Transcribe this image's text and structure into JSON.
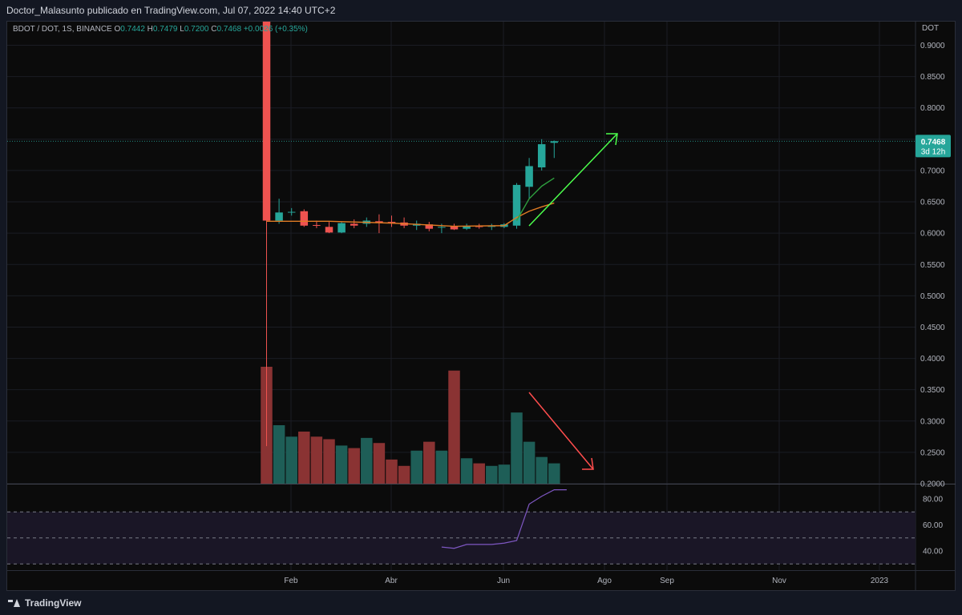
{
  "header": {
    "text": "Doctor_Malasunto publicado en TradingView.com, Jul 07, 2022 14:40 UTC+2"
  },
  "legend": {
    "symbol": "BDOT / DOT, 1S, BINANCE",
    "open_label": "O",
    "open": "0.7442",
    "high_label": "H",
    "high": "0.7479",
    "low_label": "L",
    "low": "0.7200",
    "close_label": "C",
    "close": "0.7468",
    "change": "+0.0026 (+0.35%)"
  },
  "axis": {
    "currency": "DOT"
  },
  "price_label": {
    "value": "0.7468",
    "countdown": "3d 12h"
  },
  "footer": {
    "brand": "TradingView"
  },
  "colors": {
    "up": "#26a69a",
    "down": "#ef5350",
    "vol_up": "#1e5e57",
    "vol_down": "#8a3333",
    "ma_fast": "#2e9e3e",
    "ma_slow": "#e07b24",
    "rsi": "#7e57c2",
    "arrow_up": "#4cff4c",
    "arrow_down": "#ff4d4d"
  },
  "chart_data": {
    "type": "candlestick",
    "y_ticks": [
      "0.9000",
      "0.8500",
      "0.8000",
      "0.7500",
      "0.7000",
      "0.6500",
      "0.6000",
      "0.5500",
      "0.5000",
      "0.4500",
      "0.4000",
      "0.3500",
      "0.3000",
      "0.2500",
      "0.2000"
    ],
    "x_ticks": [
      "Feb",
      "Abr",
      "Jun",
      "Ago",
      "Sep",
      "Nov",
      "2023"
    ],
    "rsi_ticks": [
      "80.00",
      "60.00",
      "40.00"
    ],
    "ylim": [
      0.2,
      0.9
    ],
    "candles": [
      {
        "o": 0.98,
        "h": 1.05,
        "l": 0.26,
        "c": 0.62
      },
      {
        "o": 0.62,
        "h": 0.655,
        "l": 0.615,
        "c": 0.633
      },
      {
        "o": 0.633,
        "h": 0.64,
        "l": 0.628,
        "c": 0.634
      },
      {
        "o": 0.635,
        "h": 0.638,
        "l": 0.61,
        "c": 0.612
      },
      {
        "o": 0.613,
        "h": 0.62,
        "l": 0.608,
        "c": 0.612
      },
      {
        "o": 0.61,
        "h": 0.618,
        "l": 0.6,
        "c": 0.601
      },
      {
        "o": 0.601,
        "h": 0.618,
        "l": 0.6,
        "c": 0.616
      },
      {
        "o": 0.615,
        "h": 0.622,
        "l": 0.608,
        "c": 0.612
      },
      {
        "o": 0.615,
        "h": 0.625,
        "l": 0.61,
        "c": 0.62
      },
      {
        "o": 0.619,
        "h": 0.63,
        "l": 0.6,
        "c": 0.617
      },
      {
        "o": 0.618,
        "h": 0.628,
        "l": 0.61,
        "c": 0.616
      },
      {
        "o": 0.617,
        "h": 0.625,
        "l": 0.608,
        "c": 0.612
      },
      {
        "o": 0.612,
        "h": 0.62,
        "l": 0.605,
        "c": 0.615
      },
      {
        "o": 0.614,
        "h": 0.618,
        "l": 0.603,
        "c": 0.607
      },
      {
        "o": 0.61,
        "h": 0.615,
        "l": 0.6,
        "c": 0.61
      },
      {
        "o": 0.611,
        "h": 0.615,
        "l": 0.605,
        "c": 0.606
      },
      {
        "o": 0.607,
        "h": 0.615,
        "l": 0.605,
        "c": 0.611
      },
      {
        "o": 0.611,
        "h": 0.615,
        "l": 0.607,
        "c": 0.61
      },
      {
        "o": 0.61,
        "h": 0.615,
        "l": 0.605,
        "c": 0.612
      },
      {
        "o": 0.61,
        "h": 0.616,
        "l": 0.608,
        "c": 0.614
      },
      {
        "o": 0.612,
        "h": 0.68,
        "l": 0.607,
        "c": 0.677
      },
      {
        "o": 0.674,
        "h": 0.72,
        "l": 0.655,
        "c": 0.707
      },
      {
        "o": 0.705,
        "h": 0.75,
        "l": 0.7,
        "c": 0.742
      },
      {
        "o": 0.7442,
        "h": 0.7479,
        "l": 0.72,
        "c": 0.7468
      }
    ],
    "volume": [
      0.92,
      0.46,
      0.37,
      0.41,
      0.37,
      0.35,
      0.3,
      0.28,
      0.36,
      0.32,
      0.19,
      0.14,
      0.26,
      0.33,
      0.26,
      0.89,
      0.2,
      0.16,
      0.14,
      0.15,
      0.56,
      0.33,
      0.21,
      0.16
    ],
    "ma_fast": [
      [
        20,
        0.62
      ],
      [
        21,
        0.655
      ],
      [
        22,
        0.675
      ],
      [
        23,
        0.688
      ]
    ],
    "ma_slow": [
      [
        0,
        0.619
      ],
      [
        5,
        0.619
      ],
      [
        10,
        0.616
      ],
      [
        15,
        0.611
      ],
      [
        19,
        0.612
      ],
      [
        20,
        0.625
      ],
      [
        21,
        0.635
      ],
      [
        22,
        0.642
      ],
      [
        23,
        0.648
      ]
    ],
    "rsi": [
      [
        14,
        43
      ],
      [
        15,
        42
      ],
      [
        16,
        45
      ],
      [
        18,
        45
      ],
      [
        19,
        46
      ],
      [
        20,
        48
      ],
      [
        21,
        76
      ],
      [
        22,
        82
      ],
      [
        23,
        87
      ],
      [
        24,
        87
      ]
    ]
  }
}
